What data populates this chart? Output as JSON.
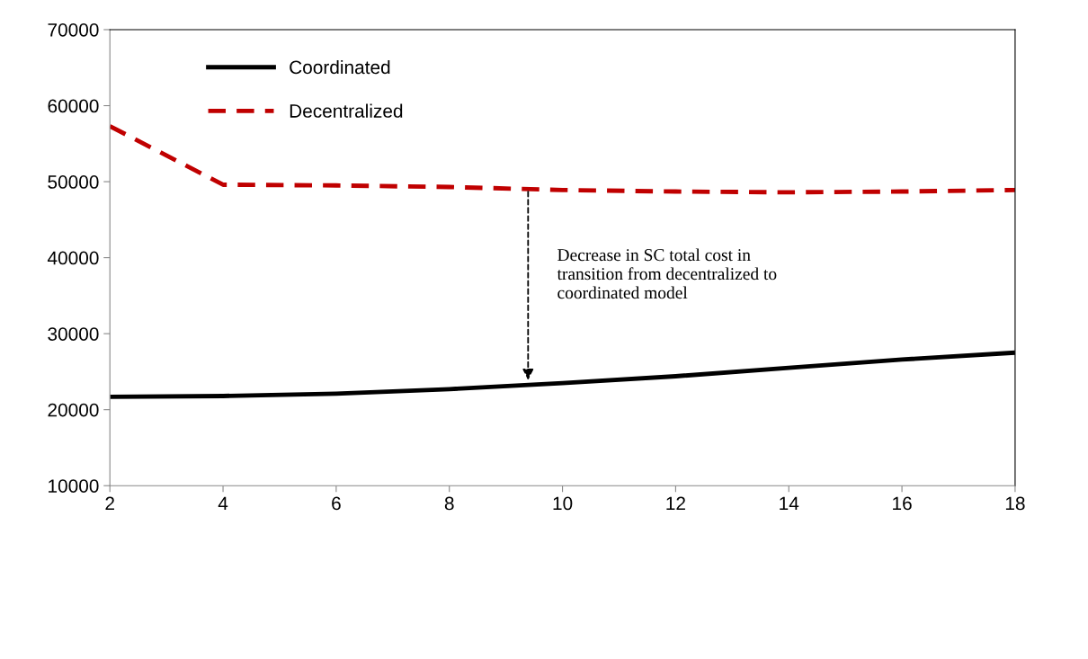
{
  "chart_data": {
    "type": "line",
    "x": [
      2,
      4,
      6,
      8,
      10,
      12,
      14,
      16,
      18
    ],
    "series": [
      {
        "name": "Coordinated",
        "color": "#000000",
        "line_style": "solid",
        "values": [
          21700,
          21800,
          22100,
          22700,
          23500,
          24400,
          25500,
          26600,
          27500
        ]
      },
      {
        "name": "Decentralized",
        "color": "#c00000",
        "line_style": "dashed",
        "values": [
          57300,
          49600,
          49500,
          49300,
          48900,
          48700,
          48600,
          48700,
          48900
        ]
      }
    ],
    "xlim": [
      2,
      18
    ],
    "xticks": [
      2,
      4,
      6,
      8,
      10,
      12,
      14,
      16,
      18
    ],
    "ylim": [
      10000,
      70000
    ],
    "yticks": [
      10000,
      20000,
      30000,
      40000,
      50000,
      60000,
      70000
    ],
    "grid": false,
    "legend": "top left",
    "marker": "none",
    "annotations": [
      "Decrease in SC total cost in\ntransition from decentralized to\ncoordinated model"
    ]
  }
}
